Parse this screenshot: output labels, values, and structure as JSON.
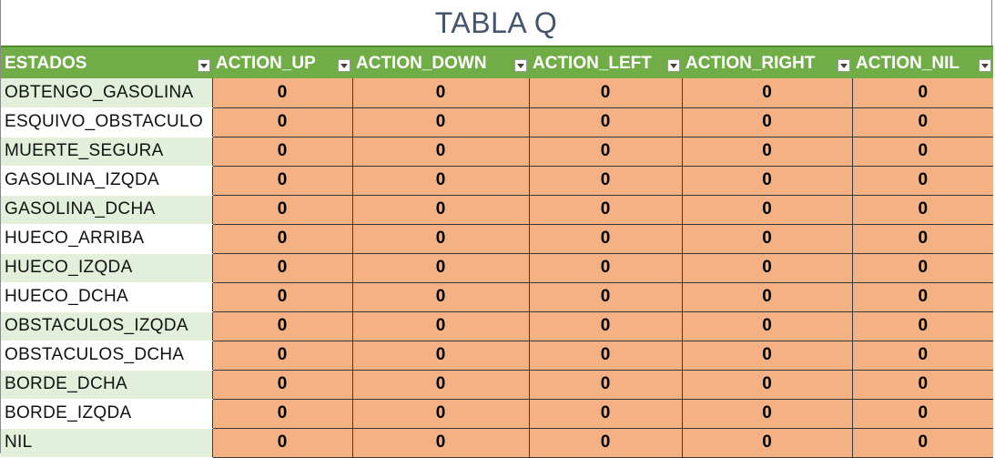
{
  "title": "TABLA Q",
  "header": {
    "columns": [
      "ESTADOS",
      "ACTION_UP",
      "ACTION_DOWN",
      "ACTION_LEFT",
      "ACTION_RIGHT",
      "ACTION_NIL"
    ]
  },
  "rows": [
    {
      "state": "OBTENGO_GASOLINA",
      "values": [
        "0",
        "0",
        "0",
        "0",
        "0"
      ]
    },
    {
      "state": "ESQUIVO_OBSTACULO",
      "values": [
        "0",
        "0",
        "0",
        "0",
        "0"
      ]
    },
    {
      "state": "MUERTE_SEGURA",
      "values": [
        "0",
        "0",
        "0",
        "0",
        "0"
      ]
    },
    {
      "state": "GASOLINA_IZQDA",
      "values": [
        "0",
        "0",
        "0",
        "0",
        "0"
      ]
    },
    {
      "state": "GASOLINA_DCHA",
      "values": [
        "0",
        "0",
        "0",
        "0",
        "0"
      ]
    },
    {
      "state": "HUECO_ARRIBA",
      "values": [
        "0",
        "0",
        "0",
        "0",
        "0"
      ]
    },
    {
      "state": "HUECO_IZQDA",
      "values": [
        "0",
        "0",
        "0",
        "0",
        "0"
      ]
    },
    {
      "state": "HUECO_DCHA",
      "values": [
        "0",
        "0",
        "0",
        "0",
        "0"
      ]
    },
    {
      "state": "OBSTACULOS_IZQDA",
      "values": [
        "0",
        "0",
        "0",
        "0",
        "0"
      ]
    },
    {
      "state": "OBSTACULOS_DCHA",
      "values": [
        "0",
        "0",
        "0",
        "0",
        "0"
      ]
    },
    {
      "state": "BORDE_DCHA",
      "values": [
        "0",
        "0",
        "0",
        "0",
        "0"
      ]
    },
    {
      "state": "BORDE_IZQDA",
      "values": [
        "0",
        "0",
        "0",
        "0",
        "0"
      ]
    },
    {
      "state": "NIL",
      "values": [
        "0",
        "0",
        "0",
        "0",
        "0"
      ]
    }
  ],
  "colors": {
    "header_bg": "#70ad47",
    "state_band": "#e2efda",
    "value_bg": "#f4b183",
    "title_color": "#44546a"
  },
  "icons": {
    "filter": "dropdown-filter-icon"
  }
}
